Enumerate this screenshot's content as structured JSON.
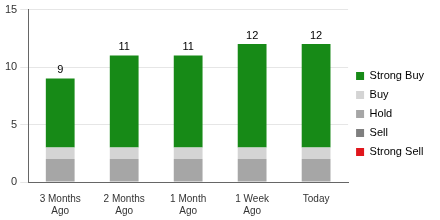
{
  "chart_data": {
    "type": "bar",
    "stacked": true,
    "grid": true,
    "legend": "right",
    "categories": [
      "3 Months Ago",
      "2 Months Ago",
      "1 Month Ago",
      "1 Week Ago",
      "Today"
    ],
    "series": [
      {
        "name": "Strong Buy",
        "color": "#178a17",
        "values": [
          6,
          8,
          8,
          9,
          9
        ]
      },
      {
        "name": "Buy",
        "color": "#d4d4d4",
        "values": [
          1,
          1,
          1,
          1,
          1
        ]
      },
      {
        "name": "Hold",
        "color": "#a6a6a6",
        "values": [
          2,
          2,
          2,
          2,
          2
        ]
      },
      {
        "name": "Sell",
        "color": "#7f7f7f",
        "values": [
          0,
          0,
          0,
          0,
          0
        ]
      },
      {
        "name": "Strong Sell",
        "color": "#e0161c",
        "values": [
          0,
          0,
          0,
          0,
          0
        ]
      }
    ],
    "totals": [
      9,
      11,
      11,
      12,
      12
    ],
    "ylim": [
      0,
      15
    ],
    "yticks": [
      0,
      5,
      10,
      15
    ]
  }
}
